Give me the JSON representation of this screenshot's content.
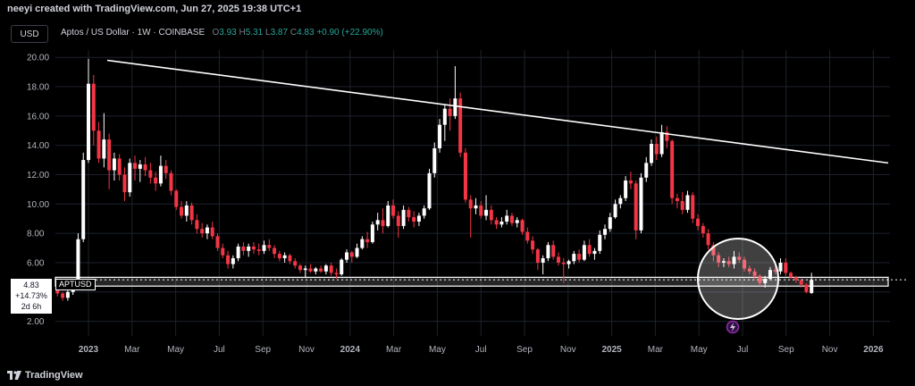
{
  "header": {
    "credit": "neeyi created with TradingView.com, Jun 27, 2025 19:38 UTC+1"
  },
  "toolbar": {
    "currency": "USD"
  },
  "legend": {
    "symbol": "Aptos / US Dollar · 1W · COINBASE",
    "open_label": "O",
    "open": "3.93",
    "high_label": "H",
    "high": "5.31",
    "low_label": "L",
    "low": "3.87",
    "close_label": "C",
    "close": "4.83",
    "change": "+0.90 (+22.90%)"
  },
  "price_label": {
    "price": "4.83",
    "change_pct": "+14.73%",
    "countdown": "2d 6h"
  },
  "symbol_tag": "APTUSD",
  "footer": {
    "brand": "TradingView"
  },
  "colors": {
    "up": "#ffffff",
    "down": "#f23645",
    "background": "#000000",
    "grid": "#1e222d",
    "axis_text": "#b2b5be",
    "trendline": "#ffffff"
  },
  "chart_data": {
    "type": "candlestick",
    "y_axis": {
      "ticks": [
        "2.00",
        "4.00",
        "6.00",
        "8.00",
        "10.00",
        "12.00",
        "14.00",
        "16.00",
        "18.00",
        "20.00"
      ],
      "ylim": [
        1.0,
        20.5
      ]
    },
    "x_axis": {
      "ticks": [
        "2023",
        "Mar",
        "May",
        "Jul",
        "Sep",
        "Nov",
        "2024",
        "Mar",
        "May",
        "Jul",
        "Sep",
        "Nov",
        "2025",
        "Mar",
        "May",
        "Jul",
        "Sep",
        "Nov",
        "2026"
      ]
    },
    "candles": [
      [
        4.1,
        4.3,
        3.7,
        3.9
      ],
      [
        3.9,
        4.0,
        3.4,
        3.6
      ],
      [
        3.6,
        4.2,
        3.4,
        4.0
      ],
      [
        4.0,
        4.4,
        3.8,
        4.3
      ],
      [
        4.3,
        8.0,
        4.2,
        7.6
      ],
      [
        7.6,
        13.5,
        7.4,
        13.0
      ],
      [
        13.0,
        19.9,
        12.8,
        18.2
      ],
      [
        18.2,
        18.8,
        14.0,
        15.0
      ],
      [
        15.0,
        15.6,
        12.8,
        13.1
      ],
      [
        13.1,
        16.2,
        12.5,
        14.4
      ],
      [
        14.4,
        14.8,
        11.0,
        12.3
      ],
      [
        12.3,
        13.5,
        11.6,
        13.1
      ],
      [
        13.1,
        13.4,
        11.6,
        12.0
      ],
      [
        12.0,
        12.5,
        10.2,
        10.8
      ],
      [
        10.8,
        13.1,
        10.5,
        12.8
      ],
      [
        12.8,
        13.3,
        11.6,
        12.4
      ],
      [
        12.4,
        13.0,
        11.5,
        12.7
      ],
      [
        12.7,
        13.2,
        11.9,
        12.3
      ],
      [
        12.3,
        12.8,
        11.4,
        11.8
      ],
      [
        11.8,
        12.2,
        10.9,
        11.4
      ],
      [
        11.4,
        13.3,
        11.2,
        12.6
      ],
      [
        12.6,
        13.0,
        11.7,
        12.1
      ],
      [
        12.1,
        12.3,
        10.6,
        10.9
      ],
      [
        10.9,
        11.0,
        9.6,
        9.8
      ],
      [
        9.8,
        10.2,
        9.0,
        9.2
      ],
      [
        9.2,
        10.2,
        8.8,
        9.9
      ],
      [
        9.9,
        10.1,
        8.6,
        8.9
      ],
      [
        8.9,
        9.3,
        8.0,
        8.3
      ],
      [
        8.3,
        8.7,
        7.7,
        8.0
      ],
      [
        8.0,
        8.6,
        7.6,
        8.4
      ],
      [
        8.4,
        8.8,
        7.6,
        7.8
      ],
      [
        7.8,
        8.0,
        6.8,
        7.0
      ],
      [
        7.0,
        7.3,
        6.3,
        6.5
      ],
      [
        6.5,
        6.8,
        5.6,
        5.9
      ],
      [
        5.9,
        6.5,
        5.6,
        6.3
      ],
      [
        6.3,
        7.3,
        6.1,
        7.1
      ],
      [
        7.1,
        7.4,
        6.5,
        6.8
      ],
      [
        6.8,
        7.3,
        6.4,
        7.1
      ],
      [
        7.1,
        7.4,
        6.6,
        6.9
      ],
      [
        6.9,
        7.3,
        6.5,
        6.8
      ],
      [
        6.8,
        7.5,
        6.6,
        7.2
      ],
      [
        7.2,
        7.6,
        6.8,
        7.0
      ],
      [
        7.0,
        7.2,
        6.3,
        6.6
      ],
      [
        6.6,
        6.8,
        6.1,
        6.3
      ],
      [
        6.3,
        6.7,
        6.0,
        6.5
      ],
      [
        6.5,
        6.6,
        5.9,
        6.1
      ],
      [
        6.1,
        6.3,
        5.6,
        5.8
      ],
      [
        5.8,
        5.9,
        5.3,
        5.5
      ],
      [
        5.5,
        5.8,
        5.0,
        5.6
      ],
      [
        5.6,
        5.9,
        5.3,
        5.4
      ],
      [
        5.4,
        5.7,
        5.2,
        5.6
      ],
      [
        5.6,
        5.8,
        5.3,
        5.4
      ],
      [
        5.4,
        5.9,
        5.2,
        5.8
      ],
      [
        5.8,
        6.0,
        5.1,
        5.3
      ],
      [
        5.3,
        5.6,
        4.9,
        5.2
      ],
      [
        5.2,
        6.3,
        5.1,
        6.2
      ],
      [
        6.2,
        6.9,
        6.0,
        6.7
      ],
      [
        6.7,
        6.8,
        6.0,
        6.4
      ],
      [
        6.4,
        7.3,
        6.3,
        7.0
      ],
      [
        7.0,
        7.8,
        6.9,
        7.6
      ],
      [
        7.6,
        8.1,
        7.0,
        7.4
      ],
      [
        7.4,
        8.8,
        7.3,
        8.6
      ],
      [
        8.6,
        9.4,
        8.2,
        8.9
      ],
      [
        8.9,
        9.7,
        8.0,
        8.5
      ],
      [
        8.5,
        10.2,
        8.4,
        9.9
      ],
      [
        9.9,
        10.3,
        9.0,
        9.2
      ],
      [
        9.2,
        9.5,
        7.7,
        8.5
      ],
      [
        8.5,
        9.9,
        8.3,
        9.6
      ],
      [
        9.6,
        9.8,
        8.8,
        9.1
      ],
      [
        9.1,
        9.5,
        8.4,
        8.8
      ],
      [
        8.8,
        9.4,
        8.5,
        9.2
      ],
      [
        9.2,
        9.9,
        9.0,
        9.7
      ],
      [
        9.7,
        12.4,
        9.6,
        12.1
      ],
      [
        12.1,
        14.2,
        11.8,
        13.8
      ],
      [
        13.8,
        15.8,
        13.5,
        15.4
      ],
      [
        15.4,
        16.8,
        14.3,
        16.5
      ],
      [
        16.5,
        17.2,
        15.0,
        16.0
      ],
      [
        16.0,
        19.4,
        15.8,
        17.2
      ],
      [
        17.2,
        17.6,
        13.2,
        13.5
      ],
      [
        13.5,
        13.8,
        10.1,
        10.3
      ],
      [
        10.3,
        10.6,
        7.7,
        9.7
      ],
      [
        9.7,
        10.4,
        9.3,
        9.9
      ],
      [
        9.9,
        10.2,
        9.0,
        9.2
      ],
      [
        9.2,
        10.6,
        8.9,
        9.6
      ],
      [
        9.6,
        9.9,
        8.6,
        8.9
      ],
      [
        8.9,
        9.1,
        8.3,
        8.6
      ],
      [
        8.6,
        9.1,
        8.4,
        8.8
      ],
      [
        8.8,
        9.6,
        8.6,
        9.2
      ],
      [
        9.2,
        9.4,
        8.5,
        8.7
      ],
      [
        8.7,
        9.1,
        8.4,
        8.9
      ],
      [
        8.9,
        9.0,
        7.9,
        8.1
      ],
      [
        8.1,
        8.4,
        7.3,
        7.5
      ],
      [
        7.5,
        7.8,
        6.6,
        6.9
      ],
      [
        6.9,
        7.0,
        5.5,
        6.0
      ],
      [
        6.0,
        6.5,
        5.2,
        6.3
      ],
      [
        6.3,
        7.4,
        6.1,
        7.2
      ],
      [
        7.2,
        7.5,
        6.2,
        6.4
      ],
      [
        6.4,
        6.7,
        5.8,
        6.0
      ],
      [
        6.0,
        6.3,
        4.6,
        5.9
      ],
      [
        5.9,
        6.2,
        5.6,
        6.1
      ],
      [
        6.1,
        6.8,
        5.9,
        6.6
      ],
      [
        6.6,
        6.9,
        6.0,
        6.2
      ],
      [
        6.2,
        7.5,
        6.1,
        7.2
      ],
      [
        7.2,
        7.6,
        6.4,
        6.6
      ],
      [
        6.6,
        7.0,
        6.2,
        6.8
      ],
      [
        6.8,
        8.2,
        6.6,
        7.9
      ],
      [
        7.9,
        8.6,
        7.6,
        8.3
      ],
      [
        8.3,
        9.4,
        8.1,
        9.1
      ],
      [
        9.1,
        10.3,
        9.0,
        10.0
      ],
      [
        10.0,
        10.6,
        9.7,
        10.4
      ],
      [
        10.4,
        11.9,
        10.2,
        11.6
      ],
      [
        11.6,
        12.2,
        11.0,
        11.4
      ],
      [
        11.4,
        11.6,
        7.6,
        8.2
      ],
      [
        8.2,
        12.1,
        8.0,
        11.8
      ],
      [
        11.8,
        13.2,
        11.5,
        12.8
      ],
      [
        12.8,
        14.4,
        12.6,
        14.1
      ],
      [
        14.1,
        14.6,
        13.0,
        13.4
      ],
      [
        13.4,
        15.4,
        13.2,
        14.9
      ],
      [
        14.9,
        15.3,
        13.8,
        14.3
      ],
      [
        14.3,
        14.4,
        10.0,
        10.4
      ],
      [
        10.4,
        10.7,
        9.7,
        10.2
      ],
      [
        10.2,
        10.8,
        9.3,
        9.6
      ],
      [
        9.6,
        10.9,
        9.4,
        10.6
      ],
      [
        10.6,
        10.8,
        8.7,
        9.0
      ],
      [
        9.0,
        9.3,
        8.2,
        8.5
      ],
      [
        8.5,
        8.7,
        7.7,
        8.0
      ],
      [
        8.0,
        8.3,
        6.9,
        7.2
      ],
      [
        7.2,
        7.4,
        6.1,
        6.5
      ],
      [
        6.5,
        6.7,
        5.7,
        6.0
      ],
      [
        6.0,
        6.3,
        5.7,
        6.1
      ],
      [
        6.1,
        6.4,
        5.7,
        5.9
      ],
      [
        5.9,
        6.8,
        5.6,
        6.4
      ],
      [
        6.4,
        6.7,
        6.0,
        6.2
      ],
      [
        6.2,
        6.4,
        5.4,
        5.6
      ],
      [
        5.6,
        5.8,
        5.2,
        5.4
      ],
      [
        5.4,
        5.6,
        4.9,
        5.1
      ],
      [
        5.1,
        5.2,
        4.4,
        4.6
      ],
      [
        4.6,
        5.1,
        4.3,
        4.9
      ],
      [
        4.9,
        5.7,
        4.8,
        5.5
      ],
      [
        5.5,
        6.1,
        5.2,
        5.4
      ],
      [
        5.4,
        6.3,
        5.2,
        6.0
      ],
      [
        6.0,
        6.3,
        5.1,
        5.3
      ],
      [
        5.3,
        5.4,
        4.9,
        5.0
      ],
      [
        5.0,
        5.1,
        4.6,
        4.8
      ],
      [
        4.8,
        4.9,
        4.3,
        4.5
      ],
      [
        4.5,
        4.6,
        3.9,
        4.0
      ],
      [
        3.93,
        5.31,
        3.87,
        4.83
      ]
    ],
    "trendline": {
      "from": [
        "2023 Feb",
        19.8
      ],
      "to": [
        "2026 Jan",
        12.8
      ]
    },
    "support_zone": {
      "low": 4.4,
      "high": 5.0
    },
    "highlight_circle": {
      "center": [
        "2025 Jun",
        4.9
      ]
    },
    "last_price": 4.83
  }
}
